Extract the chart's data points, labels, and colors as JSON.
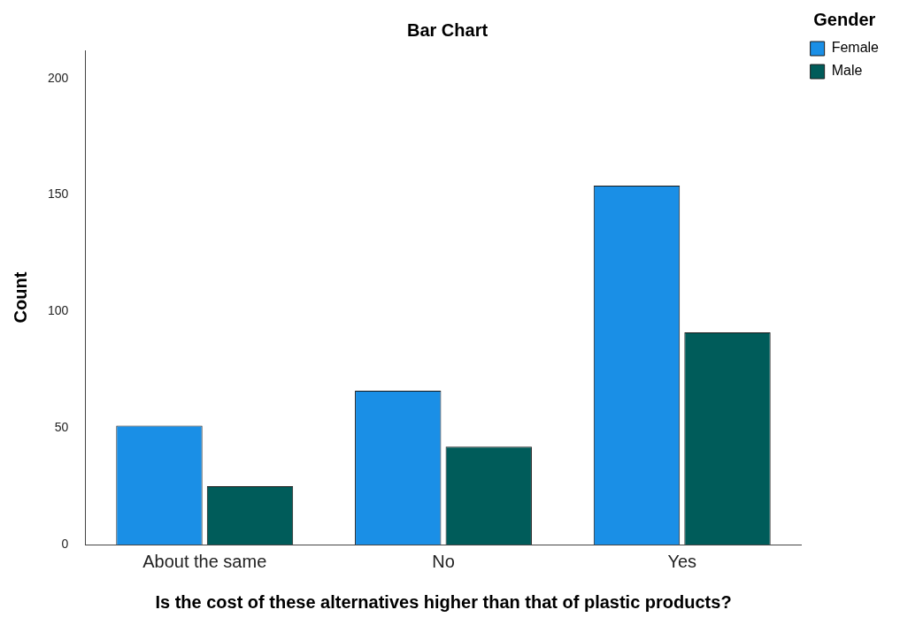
{
  "chart_data": {
    "type": "bar",
    "title": "Bar Chart",
    "xlabel": "Is the cost of these alternatives higher than that of plastic products?",
    "ylabel": "Count",
    "legend_title": "Gender",
    "categories": [
      "About the same",
      "No",
      "Yes"
    ],
    "series": [
      {
        "name": "Female",
        "color": "#1a8fe6",
        "values": [
          51,
          66,
          154
        ]
      },
      {
        "name": "Male",
        "color": "#005c5a",
        "values": [
          25,
          42,
          91
        ]
      }
    ],
    "ylim": [
      0,
      212
    ],
    "yticks": [
      0,
      50,
      100,
      150,
      200
    ],
    "grid": false,
    "legend": "top right"
  }
}
